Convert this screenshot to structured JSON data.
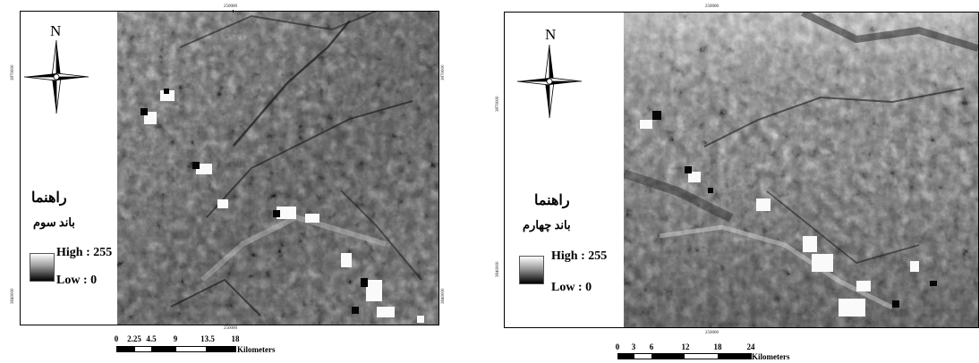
{
  "maps": [
    {
      "north_label": "N",
      "legend_title": "راهنما",
      "legend_band": "باند سوم",
      "high_label": "High : 255",
      "low_label": "Low : 0",
      "coord_top": "250000",
      "coord_bottom": "250000",
      "coord_left_top": "3870000",
      "coord_left_bottom": "3840000",
      "coord_right_top": "3870000",
      "coord_right_bottom": "3840000",
      "scale_ticks": [
        "0",
        "2.25",
        "4.5",
        "9",
        "13.5",
        "18"
      ],
      "scale_unit": "Kilometers"
    },
    {
      "north_label": "N",
      "legend_title": "راهنما",
      "legend_band": "باند چهارم",
      "high_label": "High : 255",
      "low_label": "Low : 0",
      "coord_top": "250000",
      "coord_bottom": "250000",
      "coord_left_top": "3870000",
      "coord_left_bottom": "3840000",
      "scale_ticks": [
        "0",
        "3",
        "6",
        "12",
        "18",
        "24"
      ],
      "scale_unit": "Kilometers"
    }
  ]
}
